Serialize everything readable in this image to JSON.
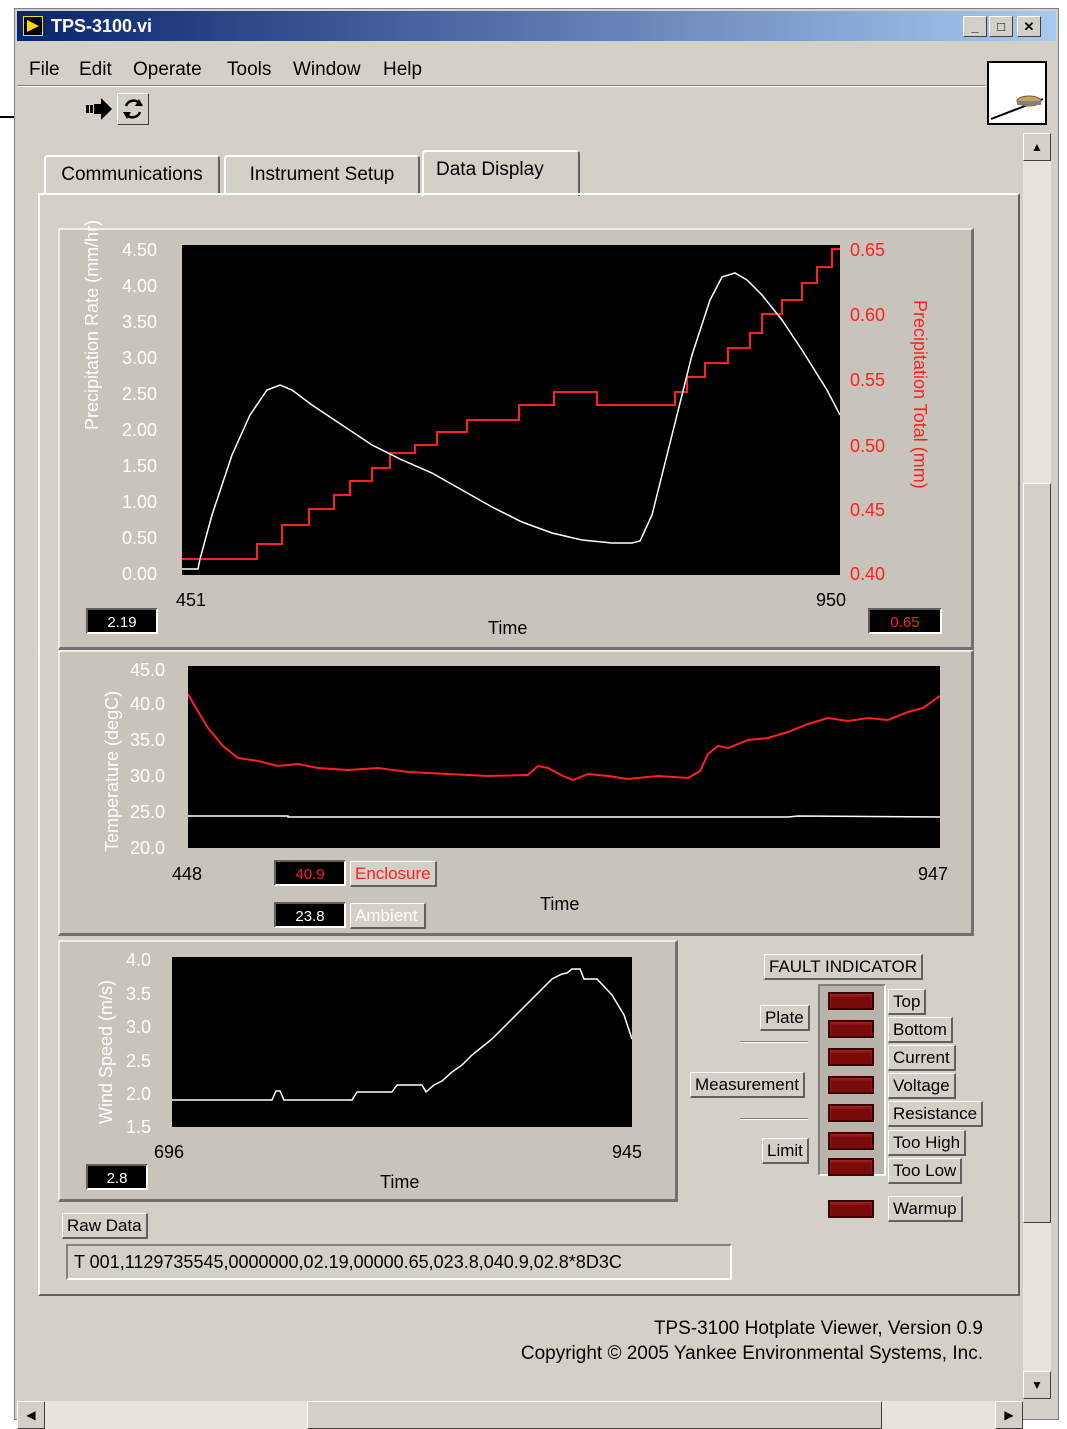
{
  "window": {
    "title": "TPS-3100.vi"
  },
  "menu": [
    "File",
    "Edit",
    "Operate",
    "Tools",
    "Window",
    "Help"
  ],
  "tabs": [
    "Communications",
    "Instrument Setup",
    "Data Display"
  ],
  "active_tab": "Data Display",
  "precip_chart": {
    "ylabel_left": "Precipitation Rate (mm/hr)",
    "ylabel_right": "Precipitation Total (mm)",
    "xlabel": "Time",
    "x_min": "451",
    "x_max": "950",
    "left_ticks": [
      "4.50",
      "4.00",
      "3.50",
      "3.00",
      "2.50",
      "2.00",
      "1.50",
      "1.00",
      "0.50",
      "0.00"
    ],
    "right_ticks": [
      "0.65",
      "0.60",
      "0.55",
      "0.50",
      "0.45",
      "0.40"
    ],
    "rate_readout": "2.19",
    "total_readout": "0.65"
  },
  "temp_chart": {
    "ylabel": "Temperature (degC)",
    "xlabel": "Time",
    "x_min": "448",
    "x_max": "947",
    "ticks": [
      "45.0",
      "40.0",
      "35.0",
      "30.0",
      "25.0",
      "20.0"
    ],
    "enclosure_value": "40.9",
    "enclosure_label": "Enclosure",
    "ambient_value": "23.8",
    "ambient_label": "Ambient"
  },
  "wind_chart": {
    "ylabel": "Wind Speed (m/s)",
    "xlabel": "Time",
    "x_min": "696",
    "x_max": "945",
    "ticks": [
      "4.0",
      "3.5",
      "3.0",
      "2.5",
      "2.0",
      "1.5"
    ],
    "readout": "2.8"
  },
  "fault": {
    "title": "FAULT INDICATOR",
    "groups": [
      "Plate",
      "Measurement",
      "Limit"
    ],
    "leds": [
      "Top",
      "Bottom",
      "Current",
      "Voltage",
      "Resistance",
      "Too High",
      "Too Low"
    ],
    "warmup": "Warmup"
  },
  "raw": {
    "label": "Raw Data",
    "value": "T 001,1129735545,0000000,02.19,00000.65,023.8,040.9,02.8*8D3C"
  },
  "footer": {
    "line1": "TPS-3100 Hotplate Viewer, Version 0.9",
    "line2": "Copyright © 2005 Yankee Environmental Systems, Inc."
  },
  "colors": {
    "accent_red": "#ff2020",
    "plot_bg": "#000000",
    "trace_white": "#ffffff"
  }
}
